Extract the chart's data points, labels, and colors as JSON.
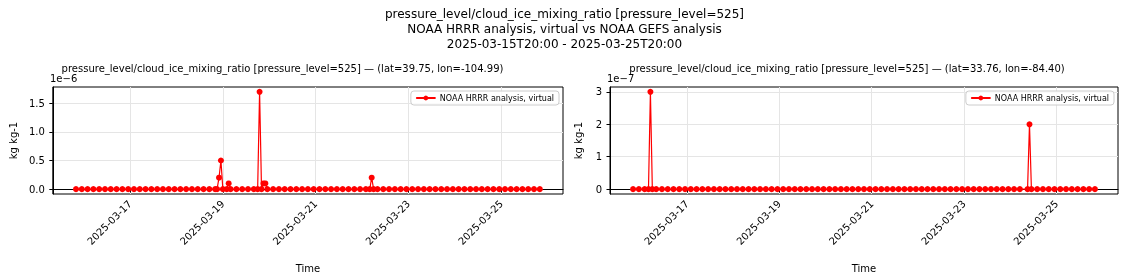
{
  "chart_data": [
    {
      "type": "line",
      "title": "pressure_level/cloud_ice_mixing_ratio [pressure_level=525]\nNOAA HRRR analysis, virtual vs NOAA GEFS analysis\n2025-03-15T20:00 - 2025-03-25T20:00",
      "subtitle": "pressure_level/cloud_ice_mixing_ratio [pressure_level=525] — (lat=39.75, lon=-104.99)",
      "xlabel": "Time",
      "ylabel": "kg kg-1",
      "annotations": [
        "1e−6"
      ],
      "x": [
        "2025-03-15T20:00",
        "2025-03-15T23:00",
        "2025-03-16T02:00",
        "2025-03-16T05:00",
        "2025-03-16T08:00",
        "2025-03-16T11:00",
        "2025-03-16T14:00",
        "2025-03-16T17:00",
        "2025-03-16T20:00",
        "2025-03-16T23:00",
        "2025-03-17T02:00",
        "2025-03-17T05:00",
        "2025-03-17T08:00",
        "2025-03-17T11:00",
        "2025-03-17T14:00",
        "2025-03-17T17:00",
        "2025-03-17T20:00",
        "2025-03-17T23:00",
        "2025-03-18T02:00",
        "2025-03-18T05:00",
        "2025-03-18T08:00",
        "2025-03-18T11:00",
        "2025-03-18T14:00",
        "2025-03-18T17:00",
        "2025-03-18T20:00",
        "2025-03-18T21:00",
        "2025-03-18T22:00",
        "2025-03-18T23:00",
        "2025-03-19T00:00",
        "2025-03-19T02:00",
        "2025-03-19T03:00",
        "2025-03-19T04:00",
        "2025-03-19T07:00",
        "2025-03-19T10:00",
        "2025-03-19T13:00",
        "2025-03-19T16:00",
        "2025-03-19T18:00",
        "2025-03-19T19:00",
        "2025-03-19T20:00",
        "2025-03-19T21:00",
        "2025-03-19T22:00",
        "2025-03-19T23:00",
        "2025-03-20T02:00",
        "2025-03-20T05:00",
        "2025-03-20T08:00",
        "2025-03-20T11:00",
        "2025-03-20T14:00",
        "2025-03-20T17:00",
        "2025-03-20T20:00",
        "2025-03-20T23:00",
        "2025-03-21T02:00",
        "2025-03-21T05:00",
        "2025-03-21T08:00",
        "2025-03-21T11:00",
        "2025-03-21T14:00",
        "2025-03-21T17:00",
        "2025-03-21T20:00",
        "2025-03-21T23:00",
        "2025-03-22T02:00",
        "2025-03-22T04:00",
        "2025-03-22T05:00",
        "2025-03-22T06:00",
        "2025-03-22T08:00",
        "2025-03-22T11:00",
        "2025-03-22T14:00",
        "2025-03-22T17:00",
        "2025-03-22T20:00",
        "2025-03-22T23:00",
        "2025-03-23T02:00",
        "2025-03-23T05:00",
        "2025-03-23T08:00",
        "2025-03-23T11:00",
        "2025-03-23T14:00",
        "2025-03-23T17:00",
        "2025-03-23T20:00",
        "2025-03-23T23:00",
        "2025-03-24T02:00",
        "2025-03-24T05:00",
        "2025-03-24T08:00",
        "2025-03-24T11:00",
        "2025-03-24T14:00",
        "2025-03-24T17:00",
        "2025-03-24T20:00",
        "2025-03-24T23:00",
        "2025-03-25T02:00",
        "2025-03-25T05:00",
        "2025-03-25T08:00",
        "2025-03-25T11:00",
        "2025-03-25T14:00",
        "2025-03-25T17:00",
        "2025-03-25T20:00"
      ],
      "series": [
        {
          "name": "NOAA HRRR analysis, virtual",
          "color": "#ff0000",
          "values": [
            0,
            0,
            0,
            0,
            0,
            0,
            0,
            0,
            0,
            0,
            0,
            0,
            0,
            0,
            0,
            0,
            0,
            0,
            0,
            0,
            0,
            0,
            0,
            0,
            0,
            0,
            0.2,
            0.5,
            0,
            0,
            0.1,
            0,
            0,
            0,
            0,
            0,
            0,
            1.7,
            0,
            0.1,
            0.1,
            0,
            0,
            0,
            0,
            0,
            0,
            0,
            0,
            0,
            0,
            0,
            0,
            0,
            0,
            0,
            0,
            0,
            0,
            0,
            0.2,
            0,
            0,
            0,
            0,
            0,
            0,
            0,
            0,
            0,
            0,
            0,
            0,
            0,
            0,
            0,
            0,
            0,
            0,
            0,
            0,
            0,
            0,
            0,
            0,
            0,
            0,
            0,
            0,
            0,
            0
          ]
        }
      ],
      "xlim": [
        "2025-03-15T08:00",
        "2025-03-26T08:00"
      ],
      "xticks": [
        "2025-03-17",
        "2025-03-19",
        "2025-03-21",
        "2025-03-23",
        "2025-03-25"
      ],
      "ylim": [
        -0.085,
        1.785
      ],
      "yticks": [
        {
          "value": 0,
          "label": "0.0"
        },
        {
          "value": 0.5,
          "label": "0.5"
        },
        {
          "value": 1,
          "label": "1.0"
        },
        {
          "value": 1.5,
          "label": "1.5"
        }
      ],
      "grid": true,
      "legend": "top right",
      "marker": "circle",
      "line_style": "solid"
    },
    {
      "type": "line",
      "title": "pressure_level/cloud_ice_mixing_ratio [pressure_level=525] — (lat=33.76, lon=-84.40)",
      "xlabel": "Time",
      "ylabel": "kg kg-1",
      "annotations": [
        "1e−7"
      ],
      "x": [
        "2025-03-15T20:00",
        "2025-03-15T23:00",
        "2025-03-16T02:00",
        "2025-03-16T04:00",
        "2025-03-16T05:00",
        "2025-03-16T06:00",
        "2025-03-16T08:00",
        "2025-03-16T11:00",
        "2025-03-16T14:00",
        "2025-03-16T17:00",
        "2025-03-16T20:00",
        "2025-03-16T23:00",
        "2025-03-17T02:00",
        "2025-03-17T05:00",
        "2025-03-17T08:00",
        "2025-03-17T11:00",
        "2025-03-17T14:00",
        "2025-03-17T17:00",
        "2025-03-17T20:00",
        "2025-03-17T23:00",
        "2025-03-18T02:00",
        "2025-03-18T05:00",
        "2025-03-18T08:00",
        "2025-03-18T11:00",
        "2025-03-18T14:00",
        "2025-03-18T17:00",
        "2025-03-18T20:00",
        "2025-03-18T23:00",
        "2025-03-19T02:00",
        "2025-03-19T05:00",
        "2025-03-19T08:00",
        "2025-03-19T11:00",
        "2025-03-19T14:00",
        "2025-03-19T17:00",
        "2025-03-19T20:00",
        "2025-03-19T23:00",
        "2025-03-20T02:00",
        "2025-03-20T05:00",
        "2025-03-20T08:00",
        "2025-03-20T11:00",
        "2025-03-20T14:00",
        "2025-03-20T17:00",
        "2025-03-20T20:00",
        "2025-03-20T23:00",
        "2025-03-21T02:00",
        "2025-03-21T05:00",
        "2025-03-21T08:00",
        "2025-03-21T11:00",
        "2025-03-21T14:00",
        "2025-03-21T17:00",
        "2025-03-21T20:00",
        "2025-03-21T23:00",
        "2025-03-22T02:00",
        "2025-03-22T05:00",
        "2025-03-22T08:00",
        "2025-03-22T11:00",
        "2025-03-22T14:00",
        "2025-03-22T17:00",
        "2025-03-22T20:00",
        "2025-03-22T23:00",
        "2025-03-23T02:00",
        "2025-03-23T05:00",
        "2025-03-23T08:00",
        "2025-03-23T11:00",
        "2025-03-23T14:00",
        "2025-03-23T17:00",
        "2025-03-23T20:00",
        "2025-03-23T23:00",
        "2025-03-24T02:00",
        "2025-03-24T05:00",
        "2025-03-24T09:00",
        "2025-03-24T10:00",
        "2025-03-24T11:00",
        "2025-03-24T14:00",
        "2025-03-24T17:00",
        "2025-03-24T20:00",
        "2025-03-24T23:00",
        "2025-03-25T02:00",
        "2025-03-25T05:00",
        "2025-03-25T08:00",
        "2025-03-25T11:00",
        "2025-03-25T14:00",
        "2025-03-25T17:00",
        "2025-03-25T20:00"
      ],
      "series": [
        {
          "name": "NOAA HRRR analysis, virtual",
          "color": "#ff0000",
          "values": [
            0,
            0,
            0,
            0,
            3,
            0,
            0,
            0,
            0,
            0,
            0,
            0,
            0,
            0,
            0,
            0,
            0,
            0,
            0,
            0,
            0,
            0,
            0,
            0,
            0,
            0,
            0,
            0,
            0,
            0,
            0,
            0,
            0,
            0,
            0,
            0,
            0,
            0,
            0,
            0,
            0,
            0,
            0,
            0,
            0,
            0,
            0,
            0,
            0,
            0,
            0,
            0,
            0,
            0,
            0,
            0,
            0,
            0,
            0,
            0,
            0,
            0,
            0,
            0,
            0,
            0,
            0,
            0,
            0,
            0,
            0,
            2,
            0,
            0,
            0,
            0,
            0,
            0,
            0,
            0,
            0,
            0,
            0,
            0
          ]
        }
      ],
      "xlim": [
        "2025-03-15T08:00",
        "2025-03-26T08:00"
      ],
      "xticks": [
        "2025-03-17",
        "2025-03-19",
        "2025-03-21",
        "2025-03-23",
        "2025-03-25"
      ],
      "ylim": [
        -0.15,
        3.15
      ],
      "yticks": [
        0,
        1,
        2,
        3
      ],
      "grid": true,
      "legend": "top right",
      "marker": "circle",
      "line_style": "solid"
    }
  ]
}
